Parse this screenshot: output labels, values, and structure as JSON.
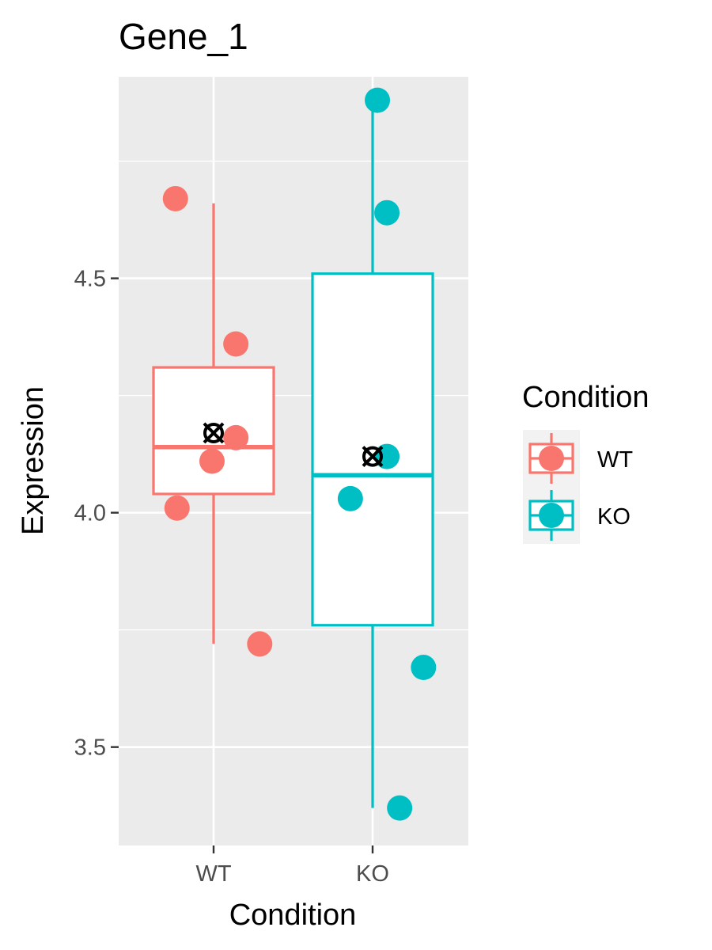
{
  "chart_data": {
    "type": "boxplot",
    "title": "Gene_1",
    "xlabel": "Condition",
    "ylabel": "Expression",
    "categories": [
      "WT",
      "KO"
    ],
    "ylim": [
      3.29,
      4.93
    ],
    "yticks": [
      3.5,
      4.0,
      4.5
    ],
    "ytick_labels": [
      "3.5",
      "4.0",
      "4.5"
    ],
    "grid": true,
    "legend": {
      "title": "Condition",
      "position": "right",
      "entries": [
        "WT",
        "KO"
      ]
    },
    "series": [
      {
        "name": "WT",
        "color": "#F8766D",
        "box": {
          "min": 3.72,
          "q1": 4.04,
          "median": 4.14,
          "q3": 4.31,
          "max": 4.66
        },
        "mean": 4.17,
        "points": [
          {
            "offset": -0.24,
            "value": 4.67
          },
          {
            "offset": 0.14,
            "value": 4.36
          },
          {
            "offset": 0.14,
            "value": 4.16
          },
          {
            "offset": -0.01,
            "value": 4.11
          },
          {
            "offset": -0.23,
            "value": 4.01
          },
          {
            "offset": 0.29,
            "value": 3.72
          }
        ]
      },
      {
        "name": "KO",
        "color": "#00BFC4",
        "box": {
          "min": 3.37,
          "q1": 3.76,
          "median": 4.08,
          "q3": 4.51,
          "max": 4.88
        },
        "mean": 4.12,
        "points": [
          {
            "offset": 0.03,
            "value": 4.88
          },
          {
            "offset": 0.09,
            "value": 4.64
          },
          {
            "offset": 0.09,
            "value": 4.12
          },
          {
            "offset": -0.14,
            "value": 4.03
          },
          {
            "offset": 0.32,
            "value": 3.67
          },
          {
            "offset": 0.17,
            "value": 3.37
          }
        ]
      }
    ]
  }
}
